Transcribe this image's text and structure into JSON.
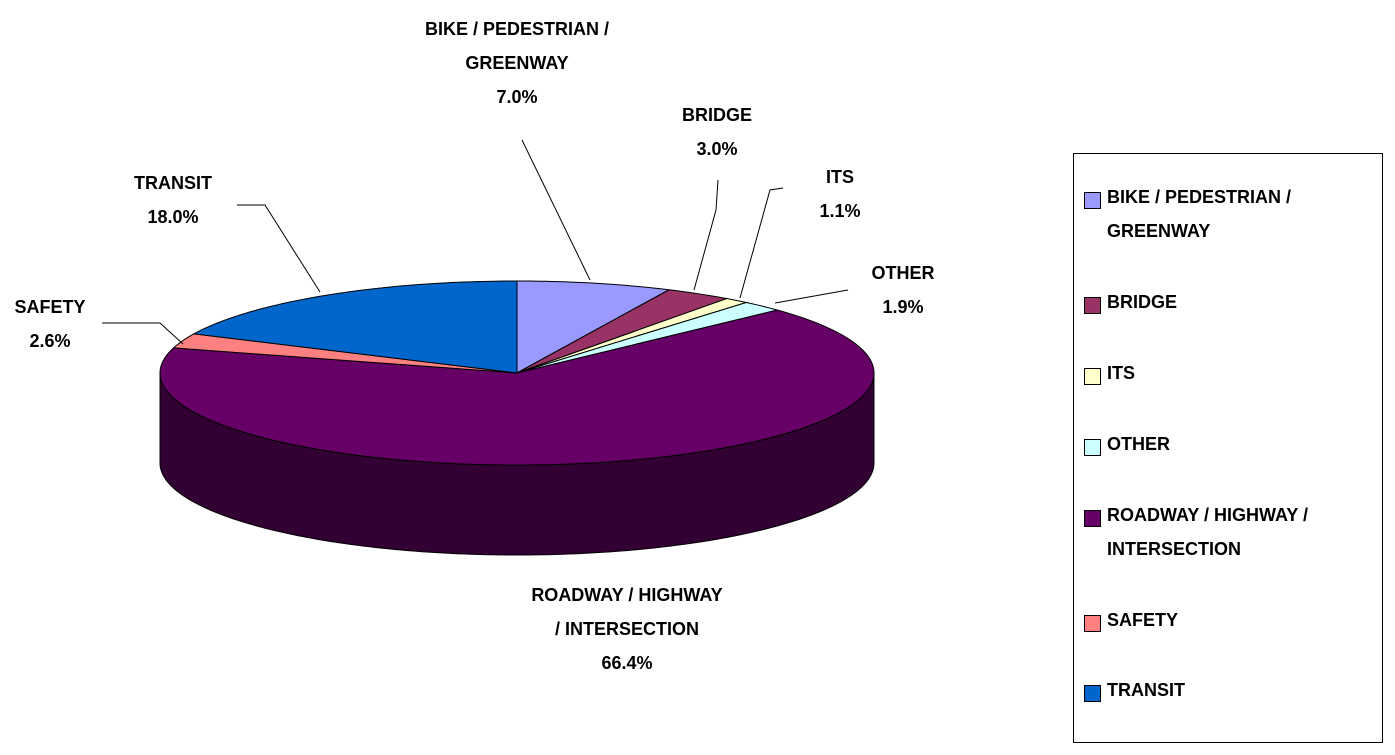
{
  "chart_data": {
    "type": "pie3d",
    "categories": [
      "BIKE / PEDESTRIAN / GREENWAY",
      "BRIDGE",
      "ITS",
      "OTHER",
      "ROADWAY / HIGHWAY / INTERSECTION",
      "SAFETY",
      "TRANSIT"
    ],
    "values": [
      7,
      3,
      1.1,
      1.9,
      66.4,
      2.6,
      18
    ],
    "value_labels": [
      "7.0%",
      "3.0%",
      "1.1%",
      "1.9%",
      "66.4%",
      "2.6%",
      "18.0%"
    ],
    "colors": [
      "#9999ff",
      "#993366",
      "#ffffcc",
      "#ccffff",
      "#660066",
      "#ff8080",
      "#0066cc"
    ],
    "legend": "right"
  }
}
